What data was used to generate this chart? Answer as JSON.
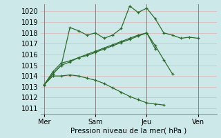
{
  "title": "",
  "xlabel": "Pression niveau de la mer( hPa )",
  "bg_color": "#cce8e8",
  "grid_color": "#ddbbbb",
  "vline_color": "#888888",
  "line_color": "#2d6a2d",
  "ylim": [
    1010.5,
    1020.7
  ],
  "yticks": [
    1011,
    1012,
    1013,
    1014,
    1015,
    1016,
    1017,
    1018,
    1019,
    1020
  ],
  "xtick_labels": [
    "Mer",
    "Sam",
    "Jeu",
    "Ven"
  ],
  "xtick_positions": [
    0,
    4,
    8,
    12
  ],
  "xlim": [
    -0.3,
    13.5
  ],
  "vlines": [
    0,
    4,
    8,
    12
  ],
  "lines": [
    {
      "x": [
        0,
        0.67,
        1.33,
        2,
        2.67,
        3.33,
        4,
        4.67,
        5.33,
        6,
        6.67,
        7.33,
        8,
        8.67,
        9.33,
        10,
        10.67,
        11.33,
        12,
        12.5
      ],
      "y": [
        1013.2,
        1014.2,
        1015.0,
        1018.5,
        1018.2,
        1017.8,
        1018.0,
        1017.5,
        1017.8,
        1018.4,
        1020.5,
        1019.9,
        1020.3,
        1019.3,
        1018.0,
        1017.8,
        1017.5,
        1017.6,
        1017.5,
        null
      ]
    },
    {
      "x": [
        0,
        0.67,
        1.33,
        2,
        2.67,
        3.33,
        4,
        4.67,
        5.33,
        6,
        6.67,
        7.33,
        8,
        8.67,
        9.33,
        10,
        10.67
      ],
      "y": [
        1013.2,
        1014.4,
        1015.2,
        1015.4,
        1015.7,
        1015.9,
        1016.2,
        1016.5,
        1016.8,
        1017.1,
        1017.4,
        1017.7,
        1018.0,
        1016.8,
        1015.5,
        1014.2,
        null
      ]
    },
    {
      "x": [
        0,
        0.67,
        1.33,
        2,
        2.67,
        3.33,
        4,
        4.67,
        5.33,
        6,
        6.67,
        7.33,
        8,
        8.67,
        9.33
      ],
      "y": [
        1013.2,
        1014.2,
        1015.0,
        1015.3,
        1015.7,
        1016.0,
        1016.3,
        1016.6,
        1016.9,
        1017.2,
        1017.5,
        1017.8,
        1018.0,
        1016.5,
        null
      ]
    },
    {
      "x": [
        0,
        0.67,
        1.33,
        2,
        2.67,
        3.33,
        4,
        4.67,
        5.33,
        6,
        6.67,
        7.33,
        8,
        8.67,
        9.33,
        10
      ],
      "y": [
        1013.2,
        1014.0,
        1014.0,
        1014.1,
        1014.0,
        1013.8,
        1013.6,
        1013.3,
        1012.9,
        1012.5,
        1012.1,
        1011.8,
        1011.5,
        1011.4,
        1011.3,
        null
      ]
    }
  ],
  "figsize": [
    3.2,
    2.0
  ],
  "dpi": 100
}
